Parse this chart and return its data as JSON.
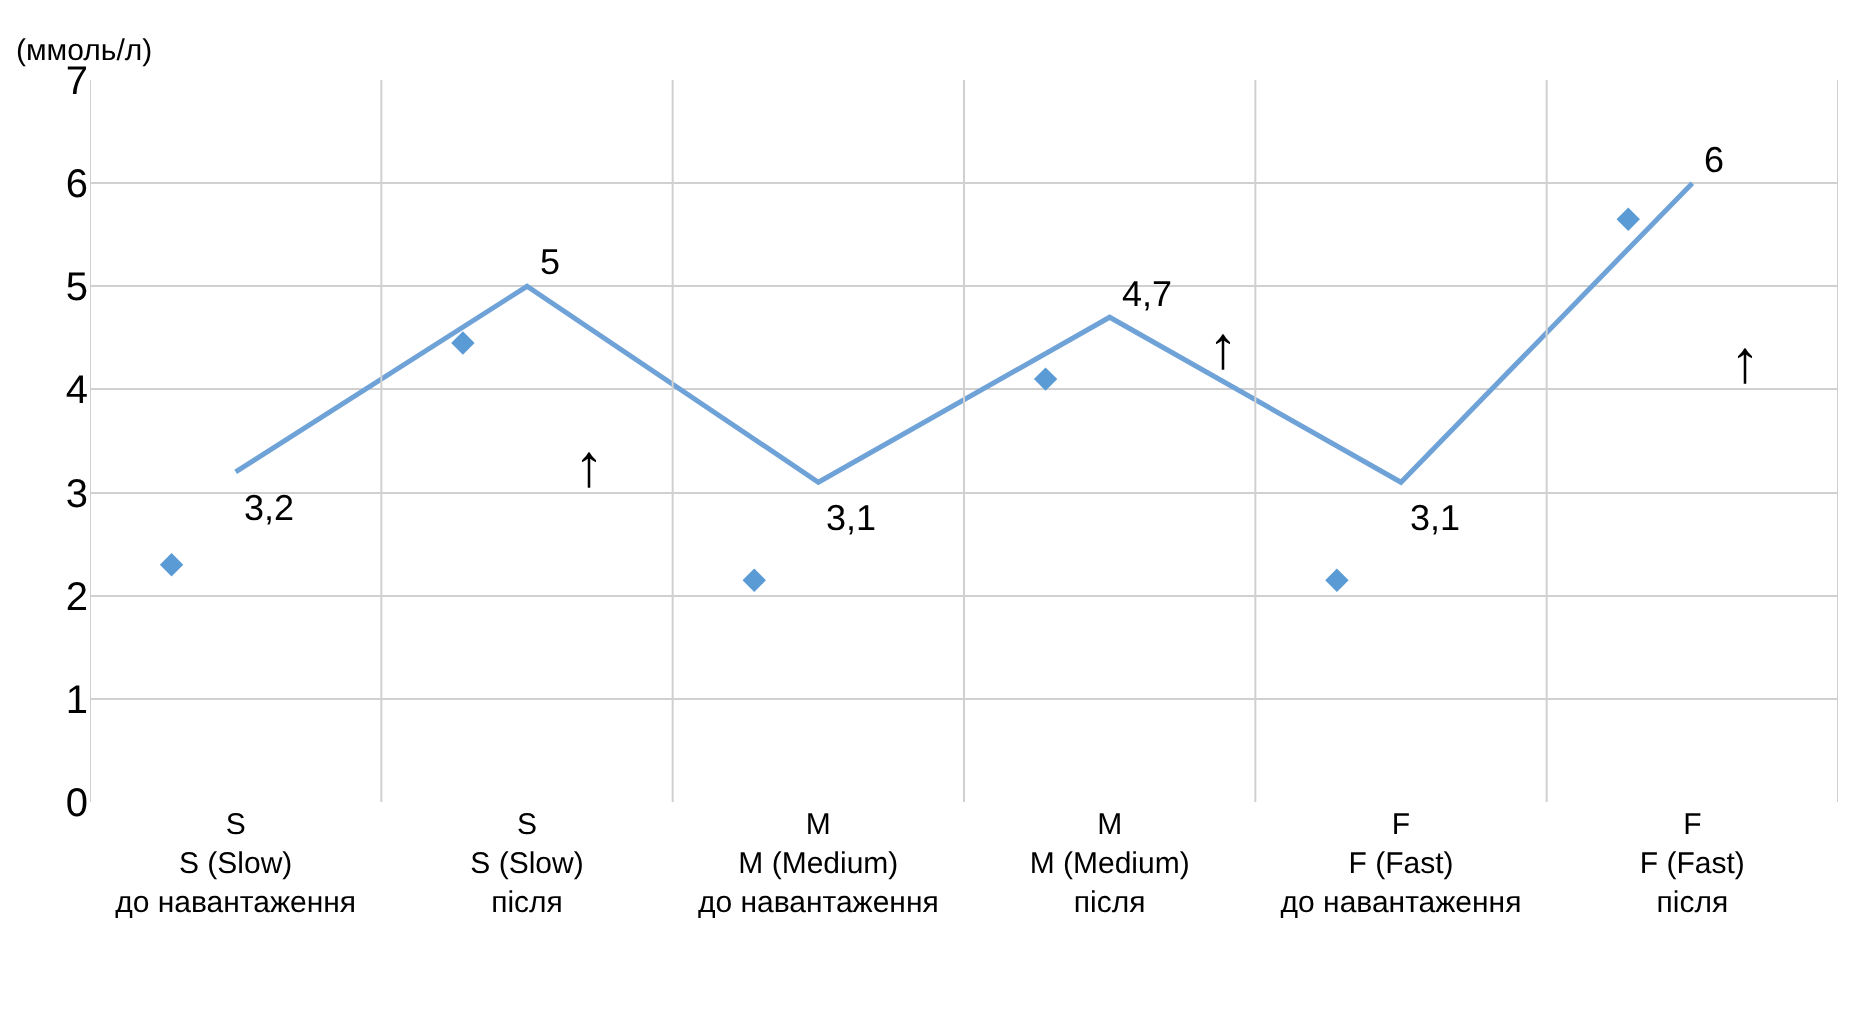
{
  "chart_data": {
    "type": "line",
    "ylabel": "(ммоль/л)",
    "categories": [
      "S\nS (Slow)\nдо навантаження",
      "S\nS (Slow)\nпісля",
      "M\nM (Medium)\nдо навантаження",
      "M\nM (Medium)\nпісля",
      "F\nF (Fast)\nдо навантаження",
      "F\nF (Fast)\nпісля"
    ],
    "series": [
      {
        "type": "line",
        "color": "#6fa3d8",
        "marker": "none",
        "values": [
          3.2,
          5,
          3.1,
          4.7,
          3.1,
          6
        ],
        "value_labels": [
          "3,2",
          "5",
          "3,1",
          "4,7",
          "3,1",
          "6"
        ]
      },
      {
        "type": "scatter",
        "color": "#5b9bd5",
        "marker": "diamond",
        "values": [
          2.3,
          4.45,
          2.15,
          4.1,
          2.15,
          5.65
        ]
      }
    ],
    "annotations": [
      "↑",
      "↑",
      "↑"
    ],
    "ylim": [
      0,
      7
    ],
    "yticks": [
      0,
      1,
      2,
      3,
      4,
      5,
      6,
      7
    ],
    "grid": true
  }
}
